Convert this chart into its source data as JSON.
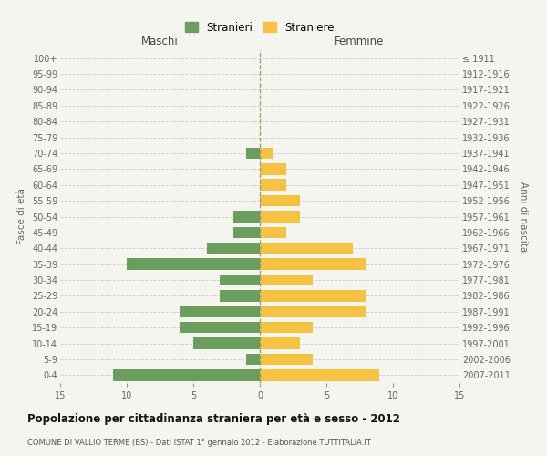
{
  "age_groups": [
    "0-4",
    "5-9",
    "10-14",
    "15-19",
    "20-24",
    "25-29",
    "30-34",
    "35-39",
    "40-44",
    "45-49",
    "50-54",
    "55-59",
    "60-64",
    "65-69",
    "70-74",
    "75-79",
    "80-84",
    "85-89",
    "90-94",
    "95-99",
    "100+"
  ],
  "birth_years": [
    "2007-2011",
    "2002-2006",
    "1997-2001",
    "1992-1996",
    "1987-1991",
    "1982-1986",
    "1977-1981",
    "1972-1976",
    "1967-1971",
    "1962-1966",
    "1957-1961",
    "1952-1956",
    "1947-1951",
    "1942-1946",
    "1937-1941",
    "1932-1936",
    "1927-1931",
    "1922-1926",
    "1917-1921",
    "1912-1916",
    "≤ 1911"
  ],
  "maschi": [
    11,
    1,
    5,
    6,
    6,
    3,
    3,
    10,
    4,
    2,
    2,
    0,
    0,
    0,
    1,
    0,
    0,
    0,
    0,
    0,
    0
  ],
  "femmine": [
    9,
    4,
    3,
    4,
    8,
    8,
    4,
    8,
    7,
    2,
    3,
    3,
    2,
    2,
    1,
    0,
    0,
    0,
    0,
    0,
    0
  ],
  "maschi_color": "#6b9e5e",
  "femmine_color": "#f5c243",
  "bg_color": "#f5f5ef",
  "grid_color": "#cccccc",
  "center_line_color": "#999966",
  "title": "Popolazione per cittadinanza straniera per età e sesso - 2012",
  "subtitle": "COMUNE DI VALLIO TERME (BS) - Dati ISTAT 1° gennaio 2012 - Elaborazione TUTTITALIA.IT",
  "xlabel_left": "Maschi",
  "xlabel_right": "Femmine",
  "ylabel_left": "Fasce di età",
  "ylabel_right": "Anni di nascita",
  "xlim": 15,
  "legend_maschi": "Stranieri",
  "legend_femmine": "Straniere"
}
